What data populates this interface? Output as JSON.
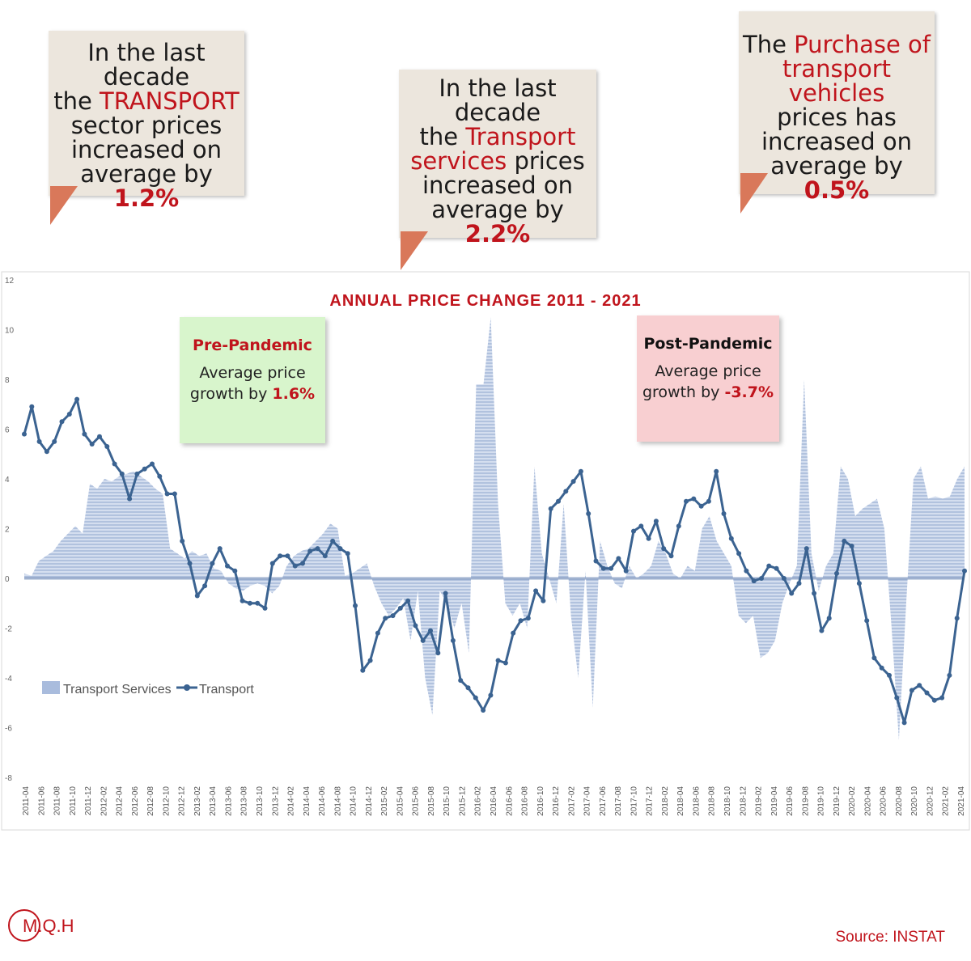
{
  "callouts": {
    "left": {
      "l1": "In the last decade",
      "l2a": "the ",
      "l2b": "TRANSPORT",
      "l3": "sector prices",
      "l4": "increased on",
      "l5a": "average by ",
      "l5b": "1.2%"
    },
    "middle": {
      "l1": "In the last decade",
      "l2a": "the ",
      "l2b": "Transport",
      "l3a": "services",
      "l3b": " prices",
      "l4": "increased on",
      "l5a": "average by ",
      "l5b": "2.2%"
    },
    "right": {
      "l1a": "The ",
      "l1b": "Purchase of",
      "l2": "transport vehicles",
      "l3": "prices has",
      "l4": "increased on",
      "l5a": "average by ",
      "l5b": "0.5%"
    }
  },
  "notes": {
    "pre": {
      "title": "Pre-Pandemic",
      "line1": "Average price",
      "line2": "growth by ",
      "value": "1.6%"
    },
    "post": {
      "title": "Post-Pandemic",
      "line1": "Average price",
      "line2": "growth by ",
      "value": "-3.7%"
    }
  },
  "logo": "M.Q.H",
  "source": "Source: INSTAT",
  "colors": {
    "accent": "#c0141c",
    "transport_line": "#3b6391",
    "services_fill": "#a9bcdd",
    "callout_bg": "#ece6dd",
    "tail": "#d9785a",
    "pre_bg": "#d8f5cc",
    "post_bg": "#f8cfd1"
  },
  "chart_data": {
    "type": "line",
    "title": "ANNUAL PRICE CHANGE 2011 - 2021",
    "xlabel": "",
    "ylabel": "",
    "ylim": [
      -8,
      12
    ],
    "yticks": [
      12,
      10,
      8,
      6,
      4,
      2,
      0,
      -2,
      -4,
      -6,
      -8
    ],
    "legend_position": "bottom-left",
    "x_tick_labels": [
      "2011-04",
      "2011-06",
      "2011-08",
      "2011-10",
      "2011-12",
      "2012-02",
      "2012-04",
      "2012-06",
      "2012-08",
      "2012-10",
      "2012-12",
      "2013-02",
      "2013-04",
      "2013-06",
      "2013-08",
      "2013-10",
      "2013-12",
      "2014-02",
      "2014-04",
      "2014-06",
      "2014-08",
      "2014-10",
      "2014-12",
      "2015-02",
      "2015-04",
      "2015-06",
      "2015-08",
      "2015-10",
      "2015-12",
      "2016-02",
      "2016-04",
      "2016-06",
      "2016-08",
      "2016-10",
      "2016-12",
      "2017-02",
      "2017-04",
      "2017-06",
      "2017-08",
      "2017-10",
      "2017-12",
      "2018-02",
      "2018-04",
      "2018-06",
      "2018-08",
      "2018-10",
      "2018-12",
      "2019-02",
      "2019-04",
      "2019-06",
      "2019-08",
      "2019-10",
      "2019-12",
      "2020-02",
      "2020-04",
      "2020-06",
      "2020-08",
      "2020-10",
      "2020-12",
      "2021-02",
      "2021-04"
    ],
    "series": [
      {
        "name": "Transport Services",
        "kind": "area",
        "values": [
          0.2,
          0.1,
          0.7,
          0.9,
          1.1,
          1.5,
          1.8,
          2.1,
          1.8,
          3.8,
          3.6,
          4.0,
          3.9,
          4.1,
          4.2,
          4.3,
          4.1,
          3.9,
          3.6,
          3.4,
          1.2,
          1.0,
          0.8,
          1.1,
          0.9,
          1.0,
          0.4,
          0.3,
          -0.2,
          -0.4,
          -0.5,
          -0.3,
          -0.2,
          -0.3,
          -0.6,
          -0.3,
          0.5,
          0.9,
          1.1,
          1.2,
          1.5,
          1.8,
          2.2,
          2.0,
          0.1,
          0.2,
          0.4,
          0.6,
          -0.3,
          -1.0,
          -1.5,
          -1.2,
          -0.8,
          -2.5,
          -0.5,
          -4.0,
          -5.5,
          -0.5,
          -1.0,
          -2.0,
          -1.0,
          -3.0,
          7.8,
          7.8,
          10.5,
          3.0,
          -1.0,
          -1.5,
          -1.0,
          -2.0,
          4.5,
          1.0,
          0.0,
          -1.0,
          3.0,
          -1.5,
          -4.0,
          0.3,
          -5.2,
          1.5,
          0.5,
          -0.2,
          -0.4,
          0.5,
          0.0,
          0.2,
          0.5,
          1.5,
          1.0,
          0.2,
          0.0,
          0.5,
          0.3,
          2.0,
          2.5,
          1.5,
          1.0,
          0.5,
          -1.5,
          -1.8,
          -1.5,
          -3.2,
          -3.0,
          -2.5,
          -1.0,
          -0.2,
          0.5,
          8.0,
          1.0,
          -0.5,
          0.5,
          1.0,
          4.5,
          4.0,
          2.5,
          2.8,
          3.0,
          3.2,
          2.0,
          -2.0,
          -6.5,
          -1.0,
          4.0,
          4.5,
          3.2,
          3.3,
          3.2,
          3.3,
          4.0,
          4.5
        ]
      },
      {
        "name": "Transport",
        "kind": "line",
        "values": [
          5.8,
          6.9,
          5.5,
          5.1,
          5.5,
          6.3,
          6.6,
          7.2,
          5.8,
          5.4,
          5.7,
          5.3,
          4.6,
          4.2,
          3.2,
          4.2,
          4.4,
          4.6,
          4.1,
          3.4,
          3.4,
          1.5,
          0.6,
          -0.7,
          -0.3,
          0.6,
          1.2,
          0.5,
          0.3,
          -0.9,
          -1.0,
          -1.0,
          -1.2,
          0.6,
          0.9,
          0.9,
          0.5,
          0.6,
          1.1,
          1.2,
          0.9,
          1.5,
          1.2,
          1.0,
          -1.1,
          -3.7,
          -3.3,
          -2.2,
          -1.6,
          -1.5,
          -1.2,
          -0.9,
          -1.9,
          -2.5,
          -2.1,
          -3.0,
          -0.6,
          -2.5,
          -4.1,
          -4.4,
          -4.8,
          -5.3,
          -4.7,
          -3.3,
          -3.4,
          -2.2,
          -1.7,
          -1.6,
          -0.5,
          -0.9,
          2.8,
          3.1,
          3.5,
          3.9,
          4.3,
          2.6,
          0.7,
          0.4,
          0.4,
          0.8,
          0.3,
          1.9,
          2.1,
          1.6,
          2.3,
          1.2,
          0.9,
          2.1,
          3.1,
          3.2,
          2.9,
          3.1,
          4.3,
          2.6,
          1.6,
          1.0,
          0.3,
          -0.1,
          0.0,
          0.5,
          0.4,
          0.0,
          -0.6,
          -0.2,
          1.2,
          -0.6,
          -2.1,
          -1.6,
          0.2,
          1.5,
          1.3,
          -0.2,
          -1.7,
          -3.2,
          -3.6,
          -3.9,
          -4.8,
          -5.8,
          -4.5,
          -4.3,
          -4.6,
          -4.9,
          -4.8,
          -3.9,
          -1.6,
          0.3
        ]
      }
    ]
  }
}
